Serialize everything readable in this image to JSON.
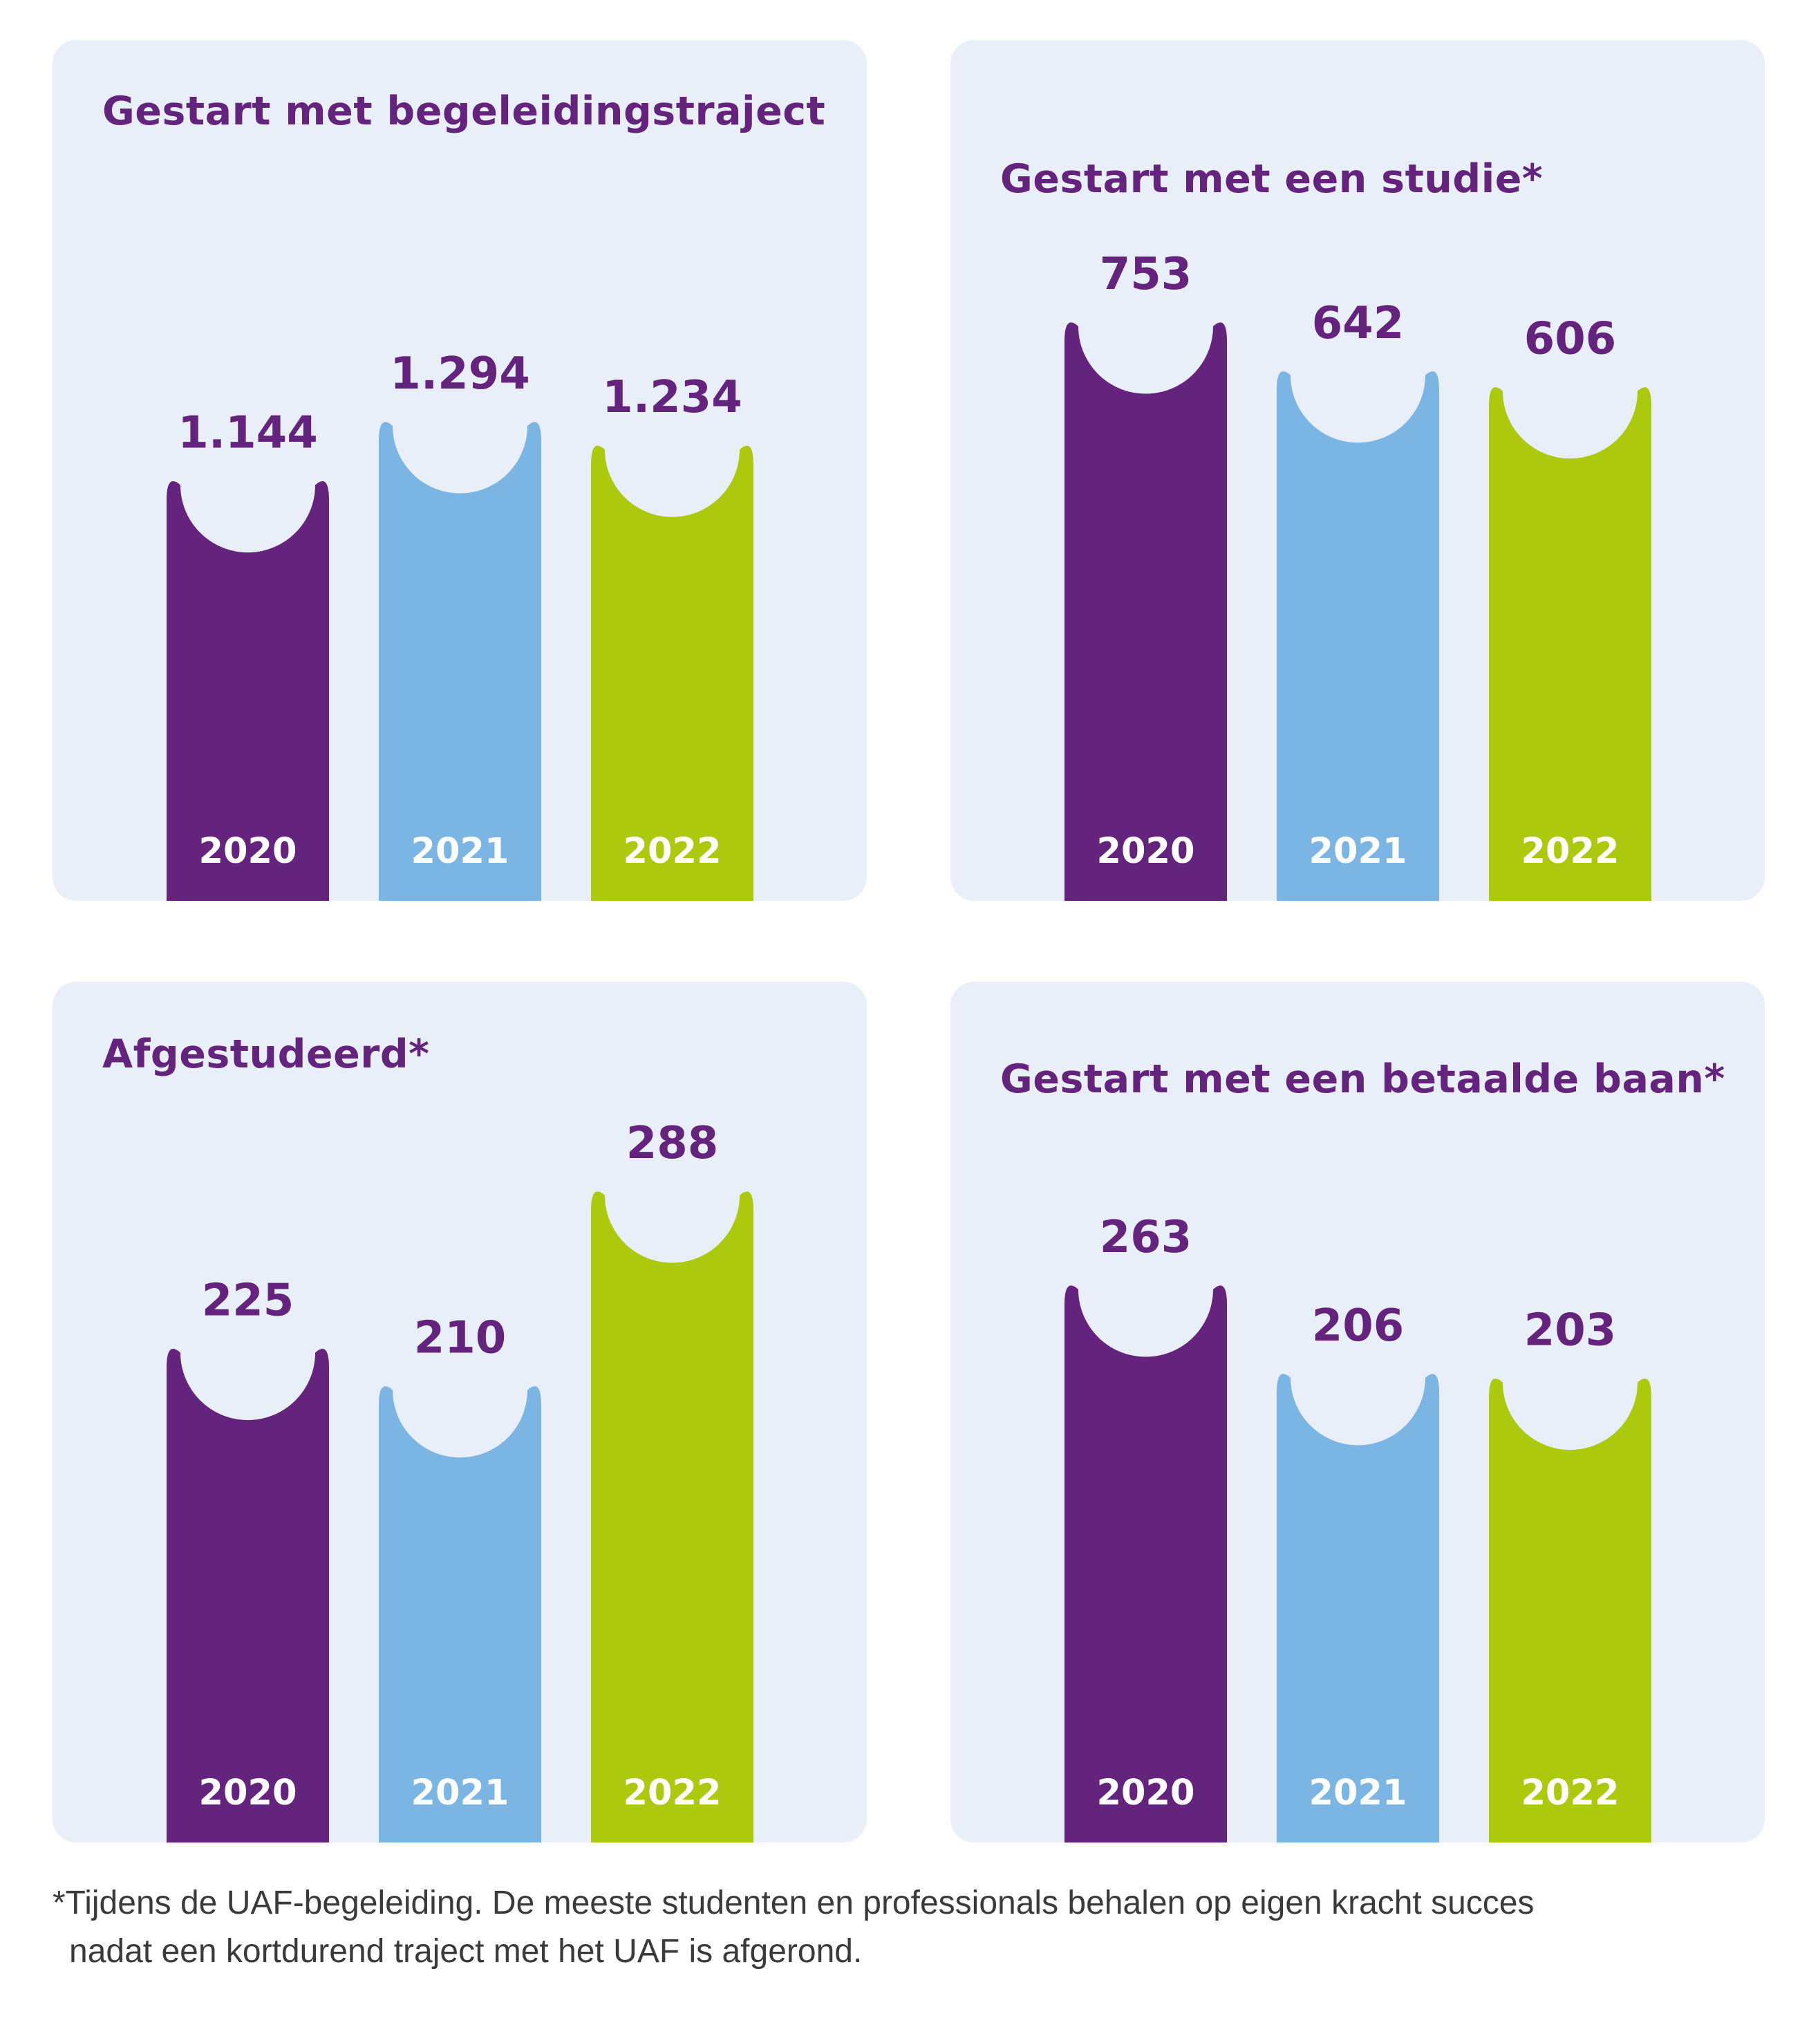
{
  "chart_data": [
    {
      "type": "bar",
      "title": "Gestart met begeleidingstraject",
      "categories": [
        "2020",
        "2021",
        "2022"
      ],
      "values": [
        1144,
        1294,
        1234
      ],
      "value_labels": [
        "1.144",
        "1.294",
        "1.234"
      ]
    },
    {
      "type": "bar",
      "title": "Gestart met een studie*",
      "categories": [
        "2020",
        "2021",
        "2022"
      ],
      "values": [
        753,
        642,
        606
      ],
      "value_labels": [
        "753",
        "642",
        "606"
      ]
    },
    {
      "type": "bar",
      "title": "Afgestudeerd*",
      "categories": [
        "2020",
        "2021",
        "2022"
      ],
      "values": [
        225,
        210,
        288
      ],
      "value_labels": [
        "225",
        "210",
        "288"
      ]
    },
    {
      "type": "bar",
      "title": "Gestart met een betaalde baan*",
      "categories": [
        "2020",
        "2021",
        "2022"
      ],
      "values": [
        263,
        206,
        203
      ],
      "value_labels": [
        "263",
        "206",
        "203"
      ]
    }
  ],
  "colors": {
    "bar_2020": "#64247e",
    "bar_2021": "#7ab5e3",
    "bar_2022": "#adc90e",
    "panel_bg": "#e8eff9",
    "title": "#64247e"
  },
  "footnote": {
    "line1": "*Tijdens de UAF-begeleiding. De meeste studenten en professionals behalen op eigen kracht succes",
    "line2": "nadat een kortdurend traject met het UAF is afgerond."
  }
}
